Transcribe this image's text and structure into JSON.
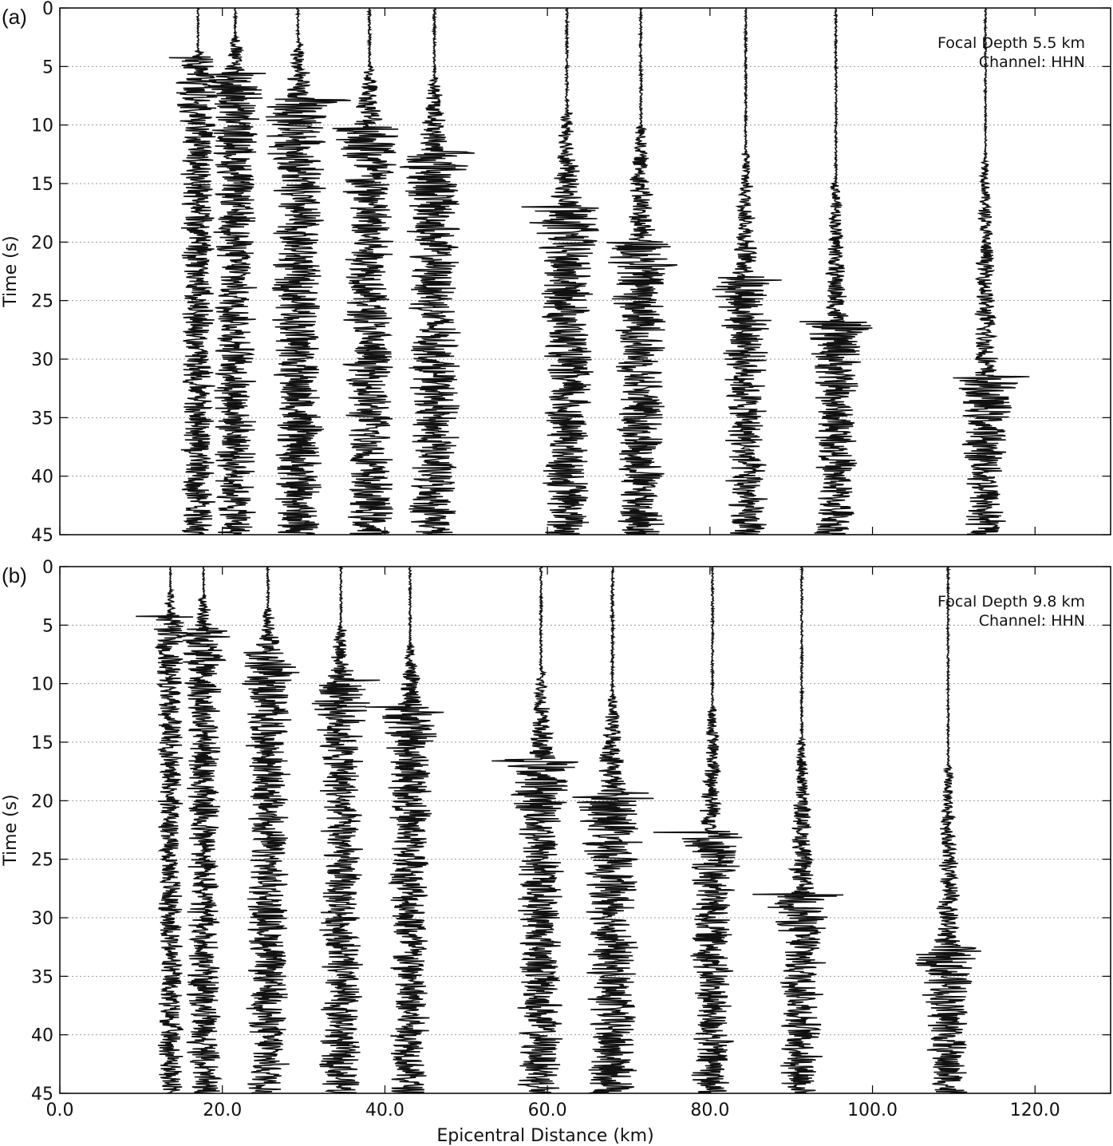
{
  "chart_data": [
    {
      "type": "record-section",
      "panel_label": "(a)",
      "annotation": [
        "Focal Depth 5.5 km",
        "Channel: HHN"
      ],
      "ylabel": "Time (s)",
      "xlim": [
        0,
        129.3
      ],
      "ylim": [
        0,
        45
      ],
      "y_inverted": true,
      "xticks": [
        {
          "value": 0,
          "label": "0.0"
        },
        {
          "value": 20,
          "label": "20.0"
        },
        {
          "value": 40,
          "label": "40.0"
        },
        {
          "value": 60,
          "label": "60.0"
        },
        {
          "value": 80,
          "label": "80.0"
        },
        {
          "value": 100,
          "label": "100.0"
        },
        {
          "value": 120,
          "label": "120.0"
        }
      ],
      "show_xtick_labels": false,
      "yticks": [
        0,
        5,
        10,
        15,
        20,
        25,
        30,
        35,
        40,
        45
      ],
      "grid": true,
      "color": "#111111",
      "traces": {
        "distance": [
          17.0,
          21.6,
          29.3,
          38.1,
          46.1,
          62.4,
          71.5,
          84.4,
          95.5,
          113.9
        ],
        "p_onset": [
          3.5,
          2.5,
          3,
          5,
          6,
          9,
          10,
          12.5,
          15,
          13
        ],
        "s_arrival": [
          4.2,
          5.5,
          7.8,
          10.2,
          12.3,
          17,
          20,
          23,
          26.8,
          31.5
        ],
        "amplitude": [
          4,
          5,
          6,
          6,
          6,
          6,
          6,
          5,
          5,
          5
        ]
      }
    },
    {
      "type": "record-section",
      "panel_label": "(b)",
      "annotation": [
        "Focal Depth 9.8 km",
        "Channel: HHN"
      ],
      "ylabel": "Time (s)",
      "xlabel": "Epicentral Distance (km)",
      "xlim": [
        0,
        129.3
      ],
      "ylim": [
        0,
        45
      ],
      "y_inverted": true,
      "xticks": [
        {
          "value": 0,
          "label": "0.0"
        },
        {
          "value": 20,
          "label": "20.0"
        },
        {
          "value": 40,
          "label": "40.0"
        },
        {
          "value": 60,
          "label": "60.0"
        },
        {
          "value": 80,
          "label": "80.0"
        },
        {
          "value": 100,
          "label": "100.0"
        },
        {
          "value": 120,
          "label": "120.0"
        }
      ],
      "show_xtick_labels": true,
      "yticks": [
        0,
        5,
        10,
        15,
        20,
        25,
        30,
        35,
        40,
        45
      ],
      "grid": true,
      "color": "#111111",
      "traces": {
        "distance": [
          13.6,
          17.7,
          25.6,
          34.6,
          43.1,
          59.2,
          68.0,
          80.3,
          91.3,
          109.3
        ],
        "p_onset": [
          2,
          2.5,
          3.5,
          5,
          6.7,
          9,
          11,
          12,
          14.5,
          17
        ],
        "s_arrival": [
          4.2,
          5.3,
          7.3,
          9.7,
          12,
          16.5,
          19.3,
          22.6,
          28,
          32.5
        ],
        "amplitude": [
          3,
          4,
          5,
          5,
          5,
          5.5,
          6,
          5,
          5,
          5
        ]
      }
    }
  ]
}
